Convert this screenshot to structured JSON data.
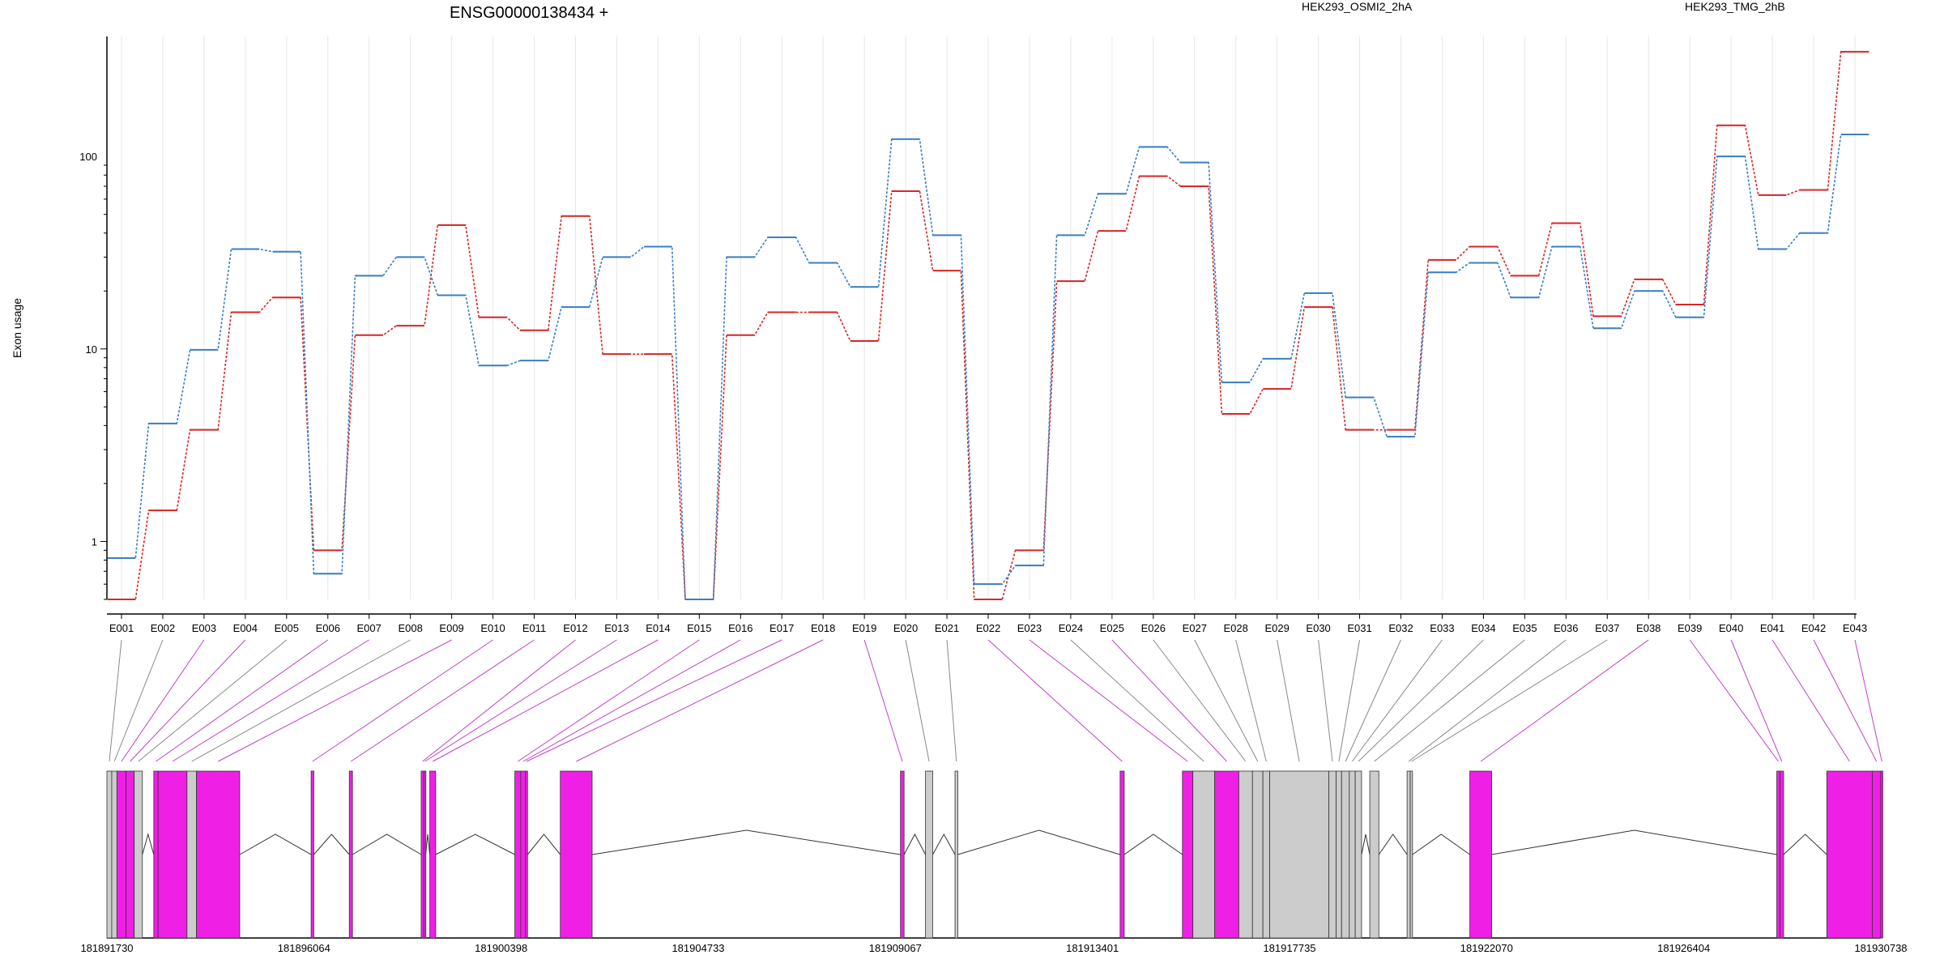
{
  "chart_data": {
    "type": "line",
    "title": "ENSG00000138434 +",
    "ylabel": "Exon usage",
    "y_scale": "log",
    "ylim": [
      0.5,
      420
    ],
    "y_ticks": [
      {
        "value": 1,
        "label": "1"
      },
      {
        "value": 10,
        "label": "10"
      },
      {
        "value": 100,
        "label": "100"
      }
    ],
    "grid": "vertical lines at each exon",
    "legend_position": "top",
    "colors": {
      "series_a": "#d62728",
      "series_b": "#3a7fc1",
      "coding_exon": "#f01fe6",
      "noncoding_exon": "#cccccc"
    },
    "categories": [
      "E001",
      "E002",
      "E003",
      "E004",
      "E005",
      "E006",
      "E007",
      "E008",
      "E009",
      "E010",
      "E011",
      "E012",
      "E013",
      "E014",
      "E015",
      "E016",
      "E017",
      "E018",
      "E019",
      "E020",
      "E021",
      "E022",
      "E023",
      "E024",
      "E025",
      "E026",
      "E027",
      "E028",
      "E029",
      "E030",
      "E031",
      "E032",
      "E033",
      "E034",
      "E035",
      "E036",
      "E037",
      "E038",
      "E039",
      "E040",
      "E041",
      "E042",
      "E043"
    ],
    "series": [
      {
        "name": "HEK293_OSMI2_2hA",
        "color": "#d62728",
        "values": [
          0.5,
          1.45,
          3.8,
          15.5,
          18.5,
          0.9,
          11.8,
          13.2,
          44,
          14.6,
          12.5,
          49,
          9.4,
          9.4,
          0.5,
          11.8,
          15.5,
          15.5,
          11,
          66,
          25.5,
          0.5,
          0.9,
          22.5,
          41,
          79,
          70,
          4.6,
          6.2,
          16.5,
          3.8,
          3.8,
          29,
          34,
          24,
          45,
          14.8,
          23,
          17,
          145,
          63,
          67,
          350
        ]
      },
      {
        "name": "HEK293_TMG_2hB",
        "color": "#3a7fc1",
        "values": [
          0.82,
          4.1,
          9.9,
          33,
          32,
          0.68,
          24,
          30,
          19,
          8.2,
          8.7,
          16.5,
          30,
          34,
          0.5,
          30,
          38,
          28,
          21,
          123,
          39,
          0.6,
          0.75,
          39,
          64,
          112,
          93,
          6.7,
          8.9,
          19.5,
          5.6,
          3.5,
          25,
          28,
          18.5,
          34,
          12.8,
          20,
          14.6,
          100,
          33,
          40,
          130
        ]
      }
    ],
    "gene_model": {
      "coordinate_labels": [
        "181891730",
        "181896064",
        "181900398",
        "181904733",
        "181909067",
        "181913401",
        "181917735",
        "181922070",
        "181926404",
        "181930738"
      ],
      "exons": [
        {
          "id": "E001",
          "coding": false,
          "start": 181891730,
          "end": 181891836
        },
        {
          "id": "E002",
          "coding": false,
          "start": 181891836,
          "end": 181891950
        },
        {
          "id": "E003",
          "coding": true,
          "start": 181891950,
          "end": 181892150
        },
        {
          "id": "E004",
          "coding": true,
          "start": 181892150,
          "end": 181892330
        },
        {
          "id": "E005",
          "coding": false,
          "start": 181892330,
          "end": 181892510
        },
        {
          "id": "E006",
          "coding": true,
          "start": 181892760,
          "end": 181892855
        },
        {
          "id": "E007",
          "coding": true,
          "start": 181892855,
          "end": 181893490
        },
        {
          "id": "E008",
          "coding": false,
          "start": 181893490,
          "end": 181893700
        },
        {
          "id": "E009",
          "coding": true,
          "start": 181893700,
          "end": 181894650
        },
        {
          "id": "E010",
          "coding": true,
          "start": 181896220,
          "end": 181896280
        },
        {
          "id": "E011",
          "coding": true,
          "start": 181897060,
          "end": 181897130
        },
        {
          "id": "E012",
          "coding": true,
          "start": 181898640,
          "end": 181898700
        },
        {
          "id": "E013",
          "coding": true,
          "start": 181898700,
          "end": 181898740
        },
        {
          "id": "E014",
          "coding": true,
          "start": 181898830,
          "end": 181898960
        },
        {
          "id": "E015",
          "coding": true,
          "start": 181900700,
          "end": 181900830
        },
        {
          "id": "E016",
          "coding": true,
          "start": 181900830,
          "end": 181900935
        },
        {
          "id": "E017",
          "coding": true,
          "start": 181900935,
          "end": 181900980
        },
        {
          "id": "E018",
          "coding": true,
          "start": 181901700,
          "end": 181902400
        },
        {
          "id": "E019",
          "coding": true,
          "start": 181909180,
          "end": 181909260
        },
        {
          "id": "E020",
          "coding": false,
          "start": 181909730,
          "end": 181909890
        },
        {
          "id": "E021",
          "coding": false,
          "start": 181910380,
          "end": 181910440
        },
        {
          "id": "E022",
          "coding": true,
          "start": 181914010,
          "end": 181914100
        },
        {
          "id": "E023",
          "coding": true,
          "start": 181915380,
          "end": 181915610
        },
        {
          "id": "E024",
          "coding": false,
          "start": 181915610,
          "end": 181916090
        },
        {
          "id": "E025",
          "coding": true,
          "start": 181916090,
          "end": 181916620
        },
        {
          "id": "E026",
          "coding": false,
          "start": 181916620,
          "end": 181916920
        },
        {
          "id": "E027",
          "coding": false,
          "start": 181916920,
          "end": 181917150
        },
        {
          "id": "E028",
          "coding": false,
          "start": 181917150,
          "end": 181917300
        },
        {
          "id": "E029",
          "coding": false,
          "start": 181917300,
          "end": 181918600
        },
        {
          "id": "E030",
          "coding": false,
          "start": 181918600,
          "end": 181918760
        },
        {
          "id": "E031",
          "coding": false,
          "start": 181918760,
          "end": 181918880
        },
        {
          "id": "E032",
          "coding": false,
          "start": 181918880,
          "end": 181919050
        },
        {
          "id": "E033",
          "coding": false,
          "start": 181919050,
          "end": 181919180
        },
        {
          "id": "E034",
          "coding": false,
          "start": 181919180,
          "end": 181919320
        },
        {
          "id": "E035",
          "coding": false,
          "start": 181919500,
          "end": 181919700
        },
        {
          "id": "E036",
          "coding": false,
          "start": 181920320,
          "end": 181920390
        },
        {
          "id": "E037",
          "coding": false,
          "start": 181920390,
          "end": 181920440
        },
        {
          "id": "E038",
          "coding": true,
          "start": 181921700,
          "end": 181922180
        },
        {
          "id": "E039",
          "coding": true,
          "start": 181928450,
          "end": 181928520
        },
        {
          "id": "E040",
          "coding": true,
          "start": 181928520,
          "end": 181928600
        },
        {
          "id": "E041",
          "coding": true,
          "start": 181929550,
          "end": 181930550
        },
        {
          "id": "E042",
          "coding": true,
          "start": 181930550,
          "end": 181930738
        },
        {
          "id": "E043",
          "coding": true,
          "start": 181930738,
          "end": 181930738
        }
      ]
    }
  }
}
